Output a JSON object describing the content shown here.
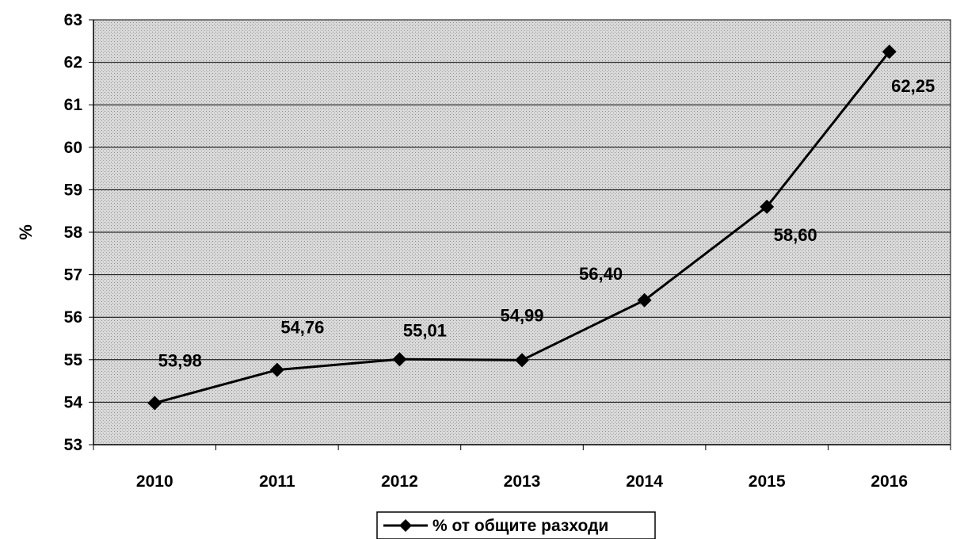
{
  "chart_data": {
    "type": "line",
    "title": "",
    "xlabel": "",
    "ylabel": "%",
    "ylim": [
      53,
      63
    ],
    "yticks": [
      "53",
      "54",
      "55",
      "56",
      "57",
      "58",
      "59",
      "60",
      "61",
      "62",
      "63"
    ],
    "categories": [
      "2010",
      "2011",
      "2012",
      "2013",
      "2014",
      "2015",
      "2016"
    ],
    "grid": true,
    "legend_position": "bottom",
    "series": [
      {
        "name": "% от общите разходи",
        "values": [
          53.98,
          54.76,
          55.01,
          54.99,
          56.4,
          58.6,
          62.25
        ],
        "labels": [
          "53,98",
          "54,76",
          "55,01",
          "54,99",
          "56,40",
          "58,60",
          "62,25"
        ],
        "color": "#000000",
        "marker": "diamond"
      }
    ]
  }
}
